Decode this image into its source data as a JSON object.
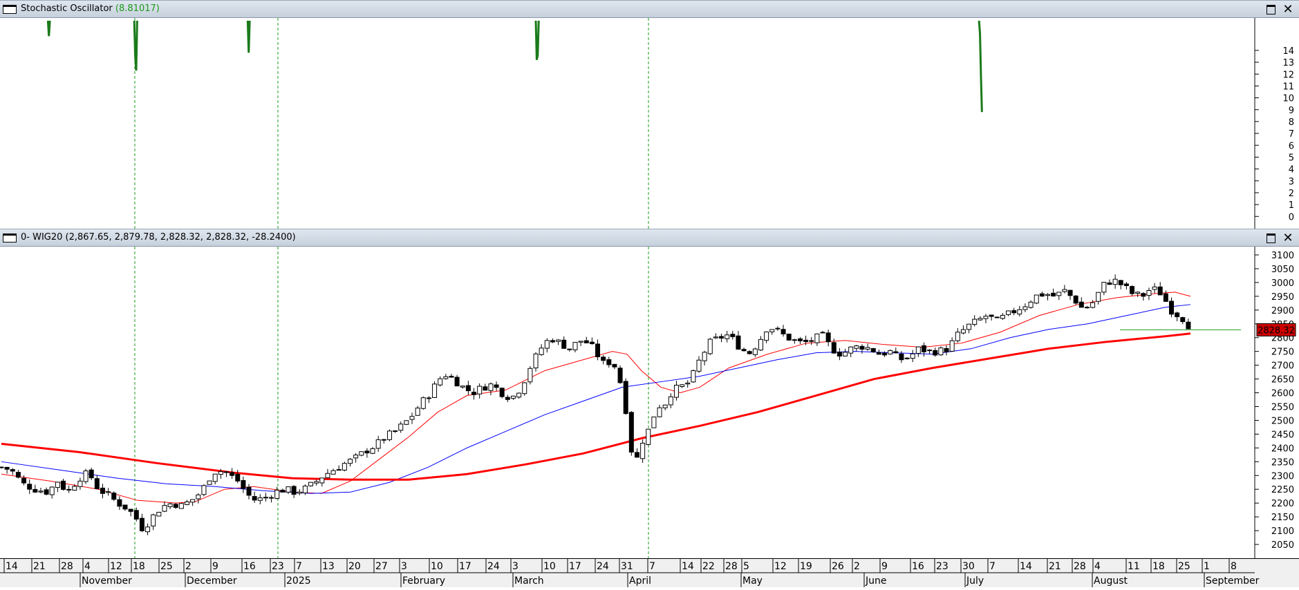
{
  "top_panel": {
    "title": "Stochastic Oscillator",
    "value": "(8.81017)",
    "maximize_label": "",
    "close_label": "✕"
  },
  "main_panel": {
    "title": "0- WIG20 (2,867.65, 2,879.78, 2,828.32, 2,828.32, -28.2400)",
    "maximize_label": "",
    "close_label": "✕",
    "last_price_label": "2828.32"
  },
  "chart_data": [
    {
      "type": "line",
      "title": "Stochastic Oscillator (8.81017)",
      "y_ticks": [
        0,
        1,
        2,
        3,
        4,
        5,
        6,
        7,
        8,
        9,
        10,
        11,
        12,
        13,
        14
      ],
      "ylim": [
        -0.8,
        16.5
      ],
      "color": "#1a7a1a",
      "segments": [
        {
          "x": [
            48,
            49,
            50
          ],
          "y": [
            16.5,
            15.2,
            16.5
          ]
        },
        {
          "x": [
            137,
            138,
            139,
            140
          ],
          "y": [
            16.5,
            13.5,
            12.3,
            16.5
          ]
        },
        {
          "x": [
            254,
            255,
            256
          ],
          "y": [
            16.5,
            13.8,
            16.5
          ]
        },
        {
          "x": [
            551,
            552,
            553,
            554
          ],
          "y": [
            16.5,
            13.2,
            13.6,
            16.5
          ]
        },
        {
          "x": [
            1008,
            1009,
            1010,
            1011
          ],
          "y": [
            16.5,
            15.4,
            11.8,
            8.8
          ]
        }
      ]
    },
    {
      "type": "candlestick",
      "title": "0- WIG20 (2,867.65, 2,879.78, 2,828.32, 2,828.32, -28.2400)",
      "y_ticks": [
        2050,
        2100,
        2150,
        2200,
        2250,
        2300,
        2350,
        2400,
        2450,
        2500,
        2550,
        2600,
        2650,
        2700,
        2750,
        2800,
        2850,
        2900,
        2950,
        3000,
        3050,
        3100
      ],
      "ylim": [
        2000,
        3130
      ],
      "last_price": 2828.32,
      "x_day_labels": [
        "14",
        "21",
        "28",
        "4",
        "12",
        "18",
        "25",
        "2",
        "9",
        "16",
        "23",
        "7",
        "13",
        "20",
        "27",
        "3",
        "10",
        "17",
        "24",
        "3",
        "10",
        "17",
        "24",
        "31",
        "7",
        "14",
        "22",
        "28",
        "5",
        "12",
        "19",
        "26",
        "2",
        "9",
        "16",
        "23",
        "30",
        "7",
        "14",
        "21",
        "28",
        "4",
        "11",
        "18",
        "25",
        "1",
        "8"
      ],
      "x_month_labels": [
        "November",
        "December",
        "2025",
        "February",
        "March",
        "April",
        "May",
        "June",
        "July",
        "August",
        "September"
      ],
      "markers": [
        {
          "label": "18"
        },
        {
          "label": "23"
        },
        {
          "label": "7"
        }
      ],
      "ohlc_anchors": [
        [
          0,
          2330
        ],
        [
          10,
          2320
        ],
        [
          22,
          2270
        ],
        [
          35,
          2250
        ],
        [
          48,
          2240
        ],
        [
          58,
          2280
        ],
        [
          68,
          2240
        ],
        [
          80,
          2290
        ],
        [
          90,
          2310
        ],
        [
          100,
          2250
        ],
        [
          110,
          2230
        ],
        [
          120,
          2200
        ],
        [
          130,
          2180
        ],
        [
          138,
          2150
        ],
        [
          145,
          2110
        ],
        [
          152,
          2130
        ],
        [
          160,
          2170
        ],
        [
          168,
          2190
        ],
        [
          176,
          2200
        ],
        [
          186,
          2190
        ],
        [
          196,
          2210
        ],
        [
          206,
          2240
        ],
        [
          214,
          2290
        ],
        [
          222,
          2320
        ],
        [
          232,
          2310
        ],
        [
          244,
          2280
        ],
        [
          254,
          2230
        ],
        [
          262,
          2210
        ],
        [
          272,
          2220
        ],
        [
          282,
          2240
        ],
        [
          292,
          2250
        ],
        [
          302,
          2240
        ],
        [
          312,
          2250
        ],
        [
          322,
          2270
        ],
        [
          332,
          2300
        ],
        [
          342,
          2320
        ],
        [
          352,
          2340
        ],
        [
          364,
          2360
        ],
        [
          376,
          2390
        ],
        [
          386,
          2410
        ],
        [
          396,
          2440
        ],
        [
          406,
          2460
        ],
        [
          416,
          2490
        ],
        [
          424,
          2520
        ],
        [
          432,
          2560
        ],
        [
          440,
          2590
        ],
        [
          448,
          2630
        ],
        [
          456,
          2670
        ],
        [
          466,
          2650
        ],
        [
          476,
          2620
        ],
        [
          486,
          2600
        ],
        [
          496,
          2620
        ],
        [
          506,
          2630
        ],
        [
          516,
          2600
        ],
        [
          526,
          2580
        ],
        [
          536,
          2620
        ],
        [
          546,
          2700
        ],
        [
          556,
          2760
        ],
        [
          566,
          2800
        ],
        [
          576,
          2780
        ],
        [
          586,
          2760
        ],
        [
          596,
          2790
        ],
        [
          606,
          2780
        ],
        [
          614,
          2740
        ],
        [
          622,
          2700
        ],
        [
          630,
          2720
        ],
        [
          638,
          2640
        ],
        [
          646,
          2500
        ],
        [
          652,
          2320
        ],
        [
          660,
          2420
        ],
        [
          668,
          2470
        ],
        [
          676,
          2550
        ],
        [
          684,
          2560
        ],
        [
          692,
          2610
        ],
        [
          700,
          2620
        ],
        [
          710,
          2640
        ],
        [
          720,
          2720
        ],
        [
          730,
          2780
        ],
        [
          740,
          2800
        ],
        [
          750,
          2810
        ],
        [
          760,
          2770
        ],
        [
          770,
          2740
        ],
        [
          780,
          2780
        ],
        [
          790,
          2840
        ],
        [
          798,
          2830
        ],
        [
          806,
          2810
        ],
        [
          816,
          2790
        ],
        [
          826,
          2780
        ],
        [
          836,
          2790
        ],
        [
          846,
          2810
        ],
        [
          856,
          2760
        ],
        [
          866,
          2740
        ],
        [
          876,
          2760
        ],
        [
          886,
          2770
        ],
        [
          896,
          2760
        ],
        [
          906,
          2740
        ],
        [
          916,
          2750
        ],
        [
          926,
          2720
        ],
        [
          936,
          2730
        ],
        [
          946,
          2760
        ],
        [
          956,
          2750
        ],
        [
          966,
          2750
        ],
        [
          976,
          2760
        ],
        [
          986,
          2810
        ],
        [
          996,
          2840
        ],
        [
          1006,
          2860
        ],
        [
          1016,
          2880
        ],
        [
          1026,
          2860
        ],
        [
          1036,
          2880
        ],
        [
          1046,
          2900
        ],
        [
          1056,
          2920
        ],
        [
          1066,
          2950
        ],
        [
          1076,
          2960
        ],
        [
          1086,
          2950
        ],
        [
          1096,
          2970
        ],
        [
          1106,
          2940
        ],
        [
          1116,
          2900
        ],
        [
          1126,
          2930
        ],
        [
          1136,
          2990
        ],
        [
          1146,
          3010
        ],
        [
          1156,
          2990
        ],
        [
          1166,
          2960
        ],
        [
          1176,
          2950
        ],
        [
          1186,
          2980
        ],
        [
          1196,
          2960
        ],
        [
          1206,
          2900
        ],
        [
          1214,
          2880
        ],
        [
          1222,
          2860
        ],
        [
          1226,
          2828
        ]
      ],
      "series": [
        {
          "name": "",
          "color": "#ff0000",
          "width": 1,
          "points": [
            [
              0,
              2305
            ],
            [
              50,
              2280
            ],
            [
              100,
              2250
            ],
            [
              140,
              2210
            ],
            [
              180,
              2200
            ],
            [
              200,
              2205
            ],
            [
              230,
              2250
            ],
            [
              260,
              2260
            ],
            [
              300,
              2240
            ],
            [
              330,
              2235
            ],
            [
              360,
              2280
            ],
            [
              390,
              2360
            ],
            [
              420,
              2440
            ],
            [
              450,
              2530
            ],
            [
              480,
              2590
            ],
            [
              520,
              2610
            ],
            [
              560,
              2680
            ],
            [
              600,
              2720
            ],
            [
              630,
              2750
            ],
            [
              645,
              2740
            ],
            [
              660,
              2680
            ],
            [
              680,
              2620
            ],
            [
              700,
              2600
            ],
            [
              720,
              2620
            ],
            [
              750,
              2690
            ],
            [
              790,
              2740
            ],
            [
              830,
              2780
            ],
            [
              870,
              2790
            ],
            [
              910,
              2775
            ],
            [
              950,
              2765
            ],
            [
              990,
              2780
            ],
            [
              1030,
              2820
            ],
            [
              1070,
              2880
            ],
            [
              1110,
              2920
            ],
            [
              1150,
              2945
            ],
            [
              1190,
              2960
            ],
            [
              1210,
              2965
            ],
            [
              1226,
              2950
            ]
          ]
        },
        {
          "name": "",
          "color": "#0000ff",
          "width": 1,
          "points": [
            [
              0,
              2350
            ],
            [
              60,
              2320
            ],
            [
              120,
              2290
            ],
            [
              170,
              2270
            ],
            [
              220,
              2260
            ],
            [
              270,
              2245
            ],
            [
              320,
              2235
            ],
            [
              360,
              2240
            ],
            [
              400,
              2275
            ],
            [
              440,
              2330
            ],
            [
              480,
              2400
            ],
            [
              520,
              2460
            ],
            [
              560,
              2520
            ],
            [
              600,
              2570
            ],
            [
              640,
              2620
            ],
            [
              680,
              2640
            ],
            [
              720,
              2660
            ],
            [
              760,
              2690
            ],
            [
              800,
              2720
            ],
            [
              840,
              2745
            ],
            [
              880,
              2750
            ],
            [
              920,
              2745
            ],
            [
              960,
              2740
            ],
            [
              1000,
              2760
            ],
            [
              1040,
              2800
            ],
            [
              1080,
              2830
            ],
            [
              1120,
              2850
            ],
            [
              1160,
              2880
            ],
            [
              1200,
              2910
            ],
            [
              1226,
              2920
            ]
          ]
        },
        {
          "name": "",
          "color": "#ff0000",
          "width": 3,
          "points": [
            [
              0,
              2415
            ],
            [
              80,
              2385
            ],
            [
              160,
              2345
            ],
            [
              240,
              2310
            ],
            [
              300,
              2290
            ],
            [
              360,
              2285
            ],
            [
              420,
              2285
            ],
            [
              480,
              2305
            ],
            [
              540,
              2340
            ],
            [
              600,
              2380
            ],
            [
              660,
              2435
            ],
            [
              720,
              2480
            ],
            [
              780,
              2530
            ],
            [
              840,
              2590
            ],
            [
              900,
              2650
            ],
            [
              960,
              2690
            ],
            [
              1020,
              2725
            ],
            [
              1080,
              2760
            ],
            [
              1140,
              2785
            ],
            [
              1200,
              2805
            ],
            [
              1226,
              2815
            ]
          ]
        }
      ]
    }
  ]
}
